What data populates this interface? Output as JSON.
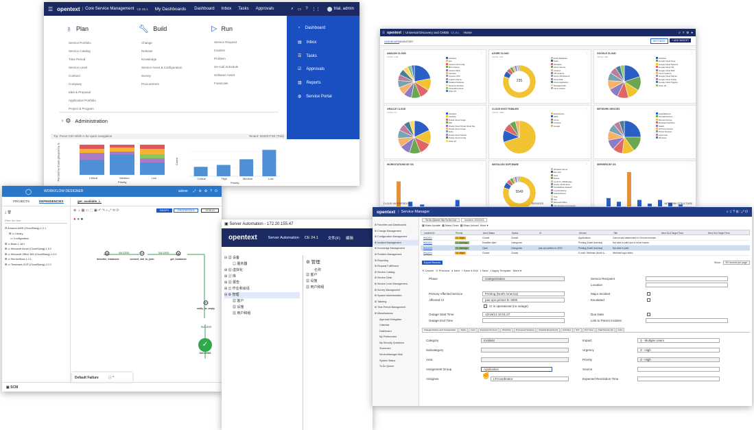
{
  "sm": {
    "logo": "opentext",
    "product": "Core Service Management",
    "version": "CE 25.1",
    "nav": [
      "My Dashboards",
      "Dashboard",
      "Inbox",
      "Tasks",
      "Approvals"
    ],
    "user": "trial, admin",
    "plan": {
      "title": "Plan",
      "items": [
        "Service Portfolio",
        "Service Catalog",
        "Time Period",
        "Service Level",
        "Contract",
        "Company",
        "Idea & Proposal",
        "Application Portfolio",
        "Project & Program"
      ]
    },
    "build": {
      "title": "Build",
      "items": [
        "Change",
        "Release",
        "Knowledge",
        "Service Asset & Configuration",
        "Survey",
        "Procurement"
      ]
    },
    "run": {
      "title": "Run",
      "items": [
        "Service Request",
        "Incident",
        "Problem",
        "On-Call Schedule",
        "Software Asset",
        "Financials"
      ]
    },
    "admin": "Administration",
    "tip": "Tip: Press Ctrl+Shift+A for quick navigation",
    "tenant": "Tenant: 933257730 (Trial)",
    "bluemenu": [
      "Dashboard",
      "Inbox",
      "Tasks",
      "Approvals",
      "Reports",
      "Service Portal"
    ],
    "chart1": {
      "ylabel": "Percent by Count grouped by S..",
      "cats": [
        "Critical",
        "Medium",
        "Low"
      ],
      "xlabel": "Priority"
    },
    "chart2": {
      "ylabel": "Count",
      "cats": [
        "Critical",
        "High",
        "Medium",
        "Low"
      ],
      "xlabel": "Priority",
      "values": [
        5,
        6,
        9,
        14
      ]
    },
    "chart3": {
      "ylabel": "Owning group",
      "cats": [
        "Application Serv..",
        "Server Support..",
        "OS Support SL3..",
        "E-mail / Webserv..",
        "Field Support Se..",
        "Problem Manage.."
      ],
      "xlabel": "Count",
      "values": [
        18,
        8,
        6,
        5,
        3,
        2
      ]
    }
  },
  "ud": {
    "logo": "opentext",
    "title": "Universal Discovery and CMDB",
    "version": "CE 25.1",
    "home": "Home",
    "tabs": [
      "DASHBOARD",
      "INVENTORY"
    ],
    "settings": "SETTINGS",
    "add": "+ ADD WIDGET",
    "widgets": [
      {
        "title": "AMAZON CLOUD",
        "total": "TOTAL: 106",
        "legend": [
          "Activities",
          "Ecs",
          "Amazon S3 Config",
          "IES Instance",
          "Amazon EC2",
          "Interface",
          "Amazon VPC",
          "Logical Volume",
          "Installed Software",
          "Network Interface",
          "Vulnerable Cloud",
          "Other 25"
        ]
      },
      {
        "title": "AZURE CLOUD",
        "total": "TOTAL: 235",
        "center": "235",
        "legend": [
          "Entity Database",
          "Node",
          "Windows",
          "Azure Service",
          "Amazon",
          "VM Instance",
          "Azure VM Network",
          "Azure Disk",
          "Azure Application",
          "Managed Disk",
          "Azure Cluster"
        ]
      },
      {
        "title": "GOOGLE CLOUD",
        "total": "TOTAL: 200",
        "legend": [
          "Activities",
          "Google Cloud Zone",
          "Google Cloud Network",
          "Google Cloud VM",
          "Google Cloud Disk",
          "Cloud Instance",
          "Google Cloud Subnet",
          "Google Cloud Config",
          "Google Cloud Tagging",
          "Other 18"
        ]
      },
      {
        "title": "ORACLE CLOUD",
        "total": "TOTAL: 57",
        "legend": [
          "Activities",
          "Interface",
          "Oracle Cloud Image",
          "Ebs",
          "Oracle Cloud Virtual Cloud Net.",
          "Oracle Cloud Image",
          "Node",
          "Oracle Cloud Subnet",
          "Oracle Cloud Config",
          "Other 18"
        ]
      },
      {
        "title": "CLOUD HOST FAMILIES",
        "total": "TOTAL: 1867",
        "legend": [
          "Ec2Instance",
          "AWS",
          "Azure",
          "Vmware",
          "Google"
        ]
      },
      {
        "title": "NETWORK DEVICES",
        "total": "",
        "legend": [
          "Load Balancer",
          "Firewall Devices",
          "Remote Access",
          "Managed Switches",
          "Switch",
          "IP Phone Device",
          "Printer Devices",
          "Hypervisor",
          "Windows"
        ]
      },
      {
        "title": "WORKSTATIONS BY OS",
        "total": ""
      },
      {
        "title": "INSTALLED SOFTWARE",
        "total": "",
        "center": "5549",
        "legend": [
          "Windows Server",
          "Dev Tool",
          "Java",
          "Dotnet",
          "Local CI / Middleware",
          "Oracle Lib Runtime",
          "SmartMarket Fastech",
          "Log Rendering",
          "Android Driver",
          "Unix",
          "Vim",
          "Microsoft Office",
          "VLC Runtime Component",
          "Other 3k"
        ]
      },
      {
        "title": "SERVERS BY OS",
        "total": ""
      }
    ],
    "bottom": [
      "CLOUD VM PORTATION",
      "SERVICES",
      "NETWORK STRUCTURE"
    ]
  },
  "wd": {
    "title": "WORKFLOW DESIGNER",
    "user": "admin",
    "tabs": [
      "PROJECTS",
      "DEPENDENCIES"
    ],
    "open": "get_available_i..",
    "filter": "Filter the tree",
    "tree": [
      "Amazon AWS (CloudSlang)-1.2.1",
      "Library",
      "Configuration",
      "Base-1.18.0",
      "Microsoft Azure (CloudSlang)-1.5.2",
      "Microsoft Office 365 (CloudSlang)-1.0.0",
      "ServiceNow-1.2.1",
      "Tesseract-OCR (CloudSlang)-1.0.0"
    ],
    "modes": [
      "GRAPH",
      "PROPERTIES",
      "DEBUG"
    ],
    "steps": [
      "describe_instances",
      "convert_xml_to_json",
      "get_instances",
      "notify_for_empty",
      "SUCCESS"
    ],
    "edge": "SUCCESS",
    "fail": "Default Failure",
    "foot": "SCM"
  },
  "sa": {
    "title": "Server Automation - 172.20.155.47",
    "logo": "opentext",
    "product": "Server Automation",
    "version": "CE 24.1",
    "menu": [
      "文件(F)",
      "编辑"
    ],
    "tree": [
      "设备",
      "服务器",
      "虚拟化",
      "库",
      "报告",
      "作业和会话",
      "管理",
      "客户",
      "设施",
      "用户和组"
    ],
    "right": {
      "title": "管理",
      "col": "名称",
      "items": [
        "客户",
        "设施",
        "用户和组"
      ]
    }
  },
  "sm2": {
    "logo": "opentext",
    "title": "Service Manager",
    "tabs": [
      "To Do Queue: My To Do List",
      "Incident: IM10003"
    ],
    "toolbar": [
      "Mass Update",
      "Mass Close",
      "Mass Unload",
      "More"
    ],
    "sidebar": [
      "Favorites and Dashboards",
      "Change Management",
      "Configuration Management",
      "Incident Management",
      "Knowledge Management",
      "Problem Management",
      "Reporting",
      "Request Fulfillment",
      "Service Catalog",
      "Service Desk",
      "Service Level Management",
      "Survey Management",
      "System Administration",
      "Tailoring",
      "Time Period Management",
      "Miscellaneous",
      "Approval Delegation",
      "Calendar",
      "Dashboard",
      "My Preferences",
      "My Security Questions",
      "Scorecard",
      "ServiceManager Mail",
      "System Status",
      "To Do Queue"
    ],
    "cols": [
      "Incident ID",
      "Priority",
      "Alert Status",
      "Status",
      "CI",
      "Service",
      "Title",
      "Next SLA Target Time",
      "Next SLA Target Time"
    ],
    "rows": [
      [
        "IM10001",
        "2 - High",
        "Closed",
        "Closed",
        "",
        "Applications",
        "Cannot add attachment to Chrome browser"
      ],
      [
        "IM10002",
        "3 - Average",
        "Deadline Alert",
        "Categorize",
        "",
        "Printing (North America)",
        "Not able to print due to driver issues"
      ],
      [
        "IM10003",
        "3 - Average",
        "Open",
        "Categorize",
        "pas-ops-printer-hr-3000",
        "Printing (North America)",
        "Not able to print"
      ],
      [
        "IM10004",
        "3 - High",
        "Closed",
        "Closed",
        "",
        "E-mail / Webmail (North A...",
        "Webmail login failed"
      ]
    ],
    "export": "Export Records",
    "show": "Show:",
    "per": "50 records per page",
    "actions": [
      "Cancel",
      "Previous",
      "Next",
      "Save & Exit",
      "Save",
      "Apply Template",
      "More"
    ],
    "form": {
      "phase_l": "Phase",
      "phase": "Categorization",
      "pas_l": "Primary Affected Service",
      "pas": "Printing (North America)",
      "aci_l": "Affected CI",
      "aci": "pas-ops-printer-hr-3000",
      "op": "CI is operational (no outage)",
      "osd_l": "Outage Start Time",
      "osd": "12/19/13 15:01:27",
      "oed_l": "Outage End Time",
      "sr_l": "Service Recipient",
      "loc_l": "Location",
      "mi_l": "Major Incident",
      "esc_l": "Escalated",
      "due_l": "Due Date",
      "link_l": "Link to Parent Incident"
    },
    "subtabs": [
      "Categorization and Assignment",
      "Tasks",
      "Cost",
      "Impacted Services",
      "Workflow",
      "Processed Solution",
      "Related Records (2)",
      "Activities",
      "SLT",
      "SLT View",
      "Attachments (0)",
      "Jobs"
    ],
    "cat": {
      "cat_l": "Category",
      "cat": "Incident",
      "sub_l": "Subcategory",
      "area_l": "Area",
      "ag_l": "Assignment Group",
      "ag": "Application",
      "asg_l": "Assignee",
      "asg": "LTCoordinator",
      "imp_l": "Impact",
      "imp": "3 - Multiple Users",
      "urg_l": "Urgency",
      "urg": "3 - High",
      "pri_l": "Priority",
      "pri": "3 - High",
      "src_l": "Source",
      "ert_l": "Expected Resolution Time"
    }
  },
  "colors": {
    "navy": "#1b2a63",
    "blue": "#1e56c4",
    "green": "#2eaa4a",
    "orange": "#f0a030",
    "smblue": "#1f3b87"
  }
}
